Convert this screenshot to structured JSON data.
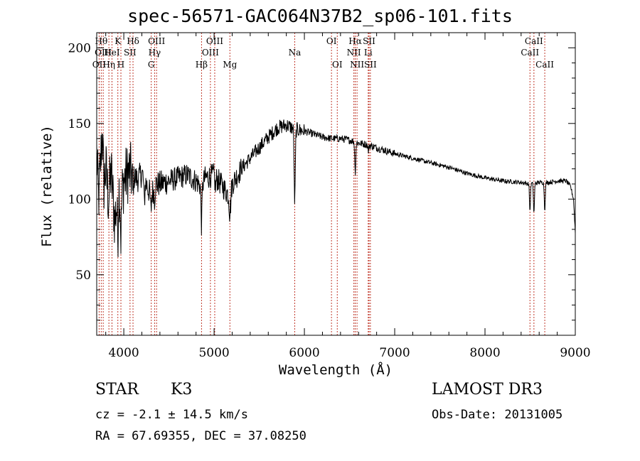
{
  "chart_data": {
    "type": "line",
    "title": "spec-56571-GAC064N37B2_sp06-101.fits",
    "xlabel": "Wavelength (Å)",
    "ylabel": "Flux (relative)",
    "xlim": [
      3700,
      9000
    ],
    "ylim": [
      10,
      210
    ],
    "xticks": [
      4000,
      5000,
      6000,
      7000,
      8000,
      9000
    ],
    "yticks": [
      50,
      100,
      150,
      200
    ],
    "anchors": [
      [
        3700,
        130
      ],
      [
        3720,
        100
      ],
      [
        3740,
        120
      ],
      [
        3760,
        145
      ],
      [
        3780,
        110
      ],
      [
        3800,
        120
      ],
      [
        3830,
        100
      ],
      [
        3860,
        118
      ],
      [
        3900,
        85
      ],
      [
        3940,
        110
      ],
      [
        3970,
        100
      ],
      [
        4000,
        112
      ],
      [
        4050,
        118
      ],
      [
        4100,
        116
      ],
      [
        4150,
        113
      ],
      [
        4200,
        117
      ],
      [
        4250,
        110
      ],
      [
        4300,
        102
      ],
      [
        4350,
        110
      ],
      [
        4400,
        110
      ],
      [
        4500,
        112
      ],
      [
        4600,
        114
      ],
      [
        4700,
        116
      ],
      [
        4800,
        112
      ],
      [
        4860,
        108
      ],
      [
        4900,
        114
      ],
      [
        5000,
        116
      ],
      [
        5100,
        108
      ],
      [
        5170,
        102
      ],
      [
        5200,
        110
      ],
      [
        5300,
        120
      ],
      [
        5400,
        127
      ],
      [
        5500,
        134
      ],
      [
        5600,
        141
      ],
      [
        5700,
        147
      ],
      [
        5800,
        149
      ],
      [
        5900,
        146
      ],
      [
        6000,
        145
      ],
      [
        6100,
        143
      ],
      [
        6200,
        141
      ],
      [
        6300,
        140
      ],
      [
        6400,
        140
      ],
      [
        6500,
        139
      ],
      [
        6600,
        137
      ],
      [
        6700,
        136
      ],
      [
        6800,
        134
      ],
      [
        6900,
        132
      ],
      [
        7000,
        130
      ],
      [
        7200,
        127
      ],
      [
        7400,
        124
      ],
      [
        7600,
        121
      ],
      [
        7800,
        117
      ],
      [
        8000,
        114
      ],
      [
        8200,
        112
      ],
      [
        8400,
        111
      ],
      [
        8500,
        110
      ],
      [
        8600,
        111
      ],
      [
        8700,
        111
      ],
      [
        8800,
        112
      ],
      [
        8900,
        112
      ],
      [
        8950,
        108
      ],
      [
        8980,
        100
      ],
      [
        9000,
        78
      ]
    ],
    "absorption": [
      [
        3933,
        -30
      ],
      [
        3968,
        -25
      ],
      [
        4101,
        -12
      ],
      [
        4227,
        -15
      ],
      [
        4300,
        -10
      ],
      [
        4340,
        -8
      ],
      [
        4861,
        -25
      ],
      [
        5015,
        -8
      ],
      [
        5172,
        -10
      ],
      [
        5183,
        -8
      ],
      [
        5890,
        -30
      ],
      [
        5896,
        -25
      ],
      [
        6563,
        -20
      ],
      [
        6708,
        -4
      ],
      [
        8498,
        -18
      ],
      [
        8542,
        -20
      ],
      [
        8662,
        -18
      ]
    ],
    "lines": [
      {
        "wl": 3727,
        "label": "OII",
        "row": 3
      },
      {
        "wl": 3750,
        "label": "Hθ",
        "row": 1
      },
      {
        "wl": 3772,
        "label": "OIII",
        "row": 2
      },
      {
        "wl": 3835,
        "label": "Hη",
        "row": 3
      },
      {
        "wl": 3869,
        "label": "HeI",
        "row": 2
      },
      {
        "wl": 3934,
        "label": "K",
        "row": 1
      },
      {
        "wl": 3968,
        "label": "H",
        "row": 3
      },
      {
        "wl": 4069,
        "label": "SII",
        "row": 2
      },
      {
        "wl": 4102,
        "label": "Hδ",
        "row": 1
      },
      {
        "wl": 4304,
        "label": "G",
        "row": 3
      },
      {
        "wl": 4341,
        "label": "Hγ",
        "row": 2
      },
      {
        "wl": 4363,
        "label": "OIII",
        "row": 1
      },
      {
        "wl": 4861,
        "label": "Hβ",
        "row": 3
      },
      {
        "wl": 4959,
        "label": "OIII",
        "row": 2
      },
      {
        "wl": 5007,
        "label": "OIII",
        "row": 1
      },
      {
        "wl": 5175,
        "label": "Mg",
        "row": 3
      },
      {
        "wl": 5893,
        "label": "Na",
        "row": 2
      },
      {
        "wl": 6300,
        "label": "OI",
        "row": 1
      },
      {
        "wl": 6364,
        "label": "OI",
        "row": 3
      },
      {
        "wl": 6548,
        "label": "NII",
        "row": 2
      },
      {
        "wl": 6563,
        "label": "Hα",
        "row": 1
      },
      {
        "wl": 6583,
        "label": "NII",
        "row": 3
      },
      {
        "wl": 6707,
        "label": "Li",
        "row": 2
      },
      {
        "wl": 6716,
        "label": "SII",
        "row": 1
      },
      {
        "wl": 6731,
        "label": "SII",
        "row": 3
      },
      {
        "wl": 8498,
        "label": "CaII",
        "row": 2
      },
      {
        "wl": 8542,
        "label": "CaII",
        "row": 1
      },
      {
        "wl": 8662,
        "label": "CaII",
        "row": 3
      }
    ]
  },
  "info": {
    "object_type": "STAR",
    "subclass": "K3",
    "survey": "LAMOST DR3",
    "cz": "cz = -2.1 ± 14.5 km/s",
    "obs_date": "Obs-Date: 20131005",
    "coords": "RA =  67.69355, DEC =  37.08250"
  }
}
